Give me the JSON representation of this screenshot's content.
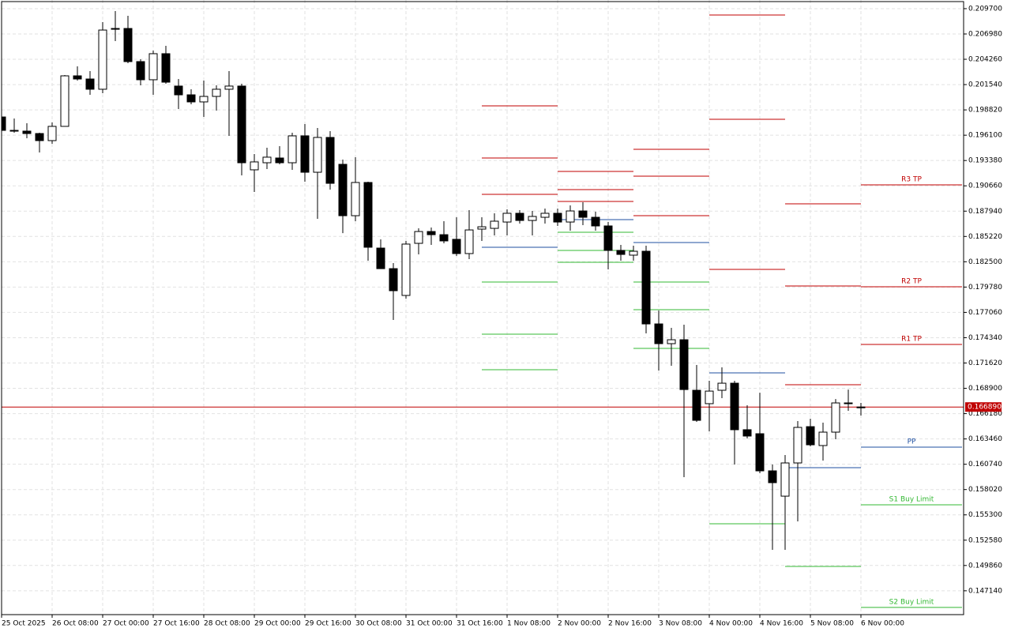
{
  "chart_data": {
    "type": "candlestick",
    "grid": true,
    "bull_color": "#ffffff",
    "bear_color": "#000000",
    "outline_color": "#000000",
    "ylim": [
      0.14458,
      0.21063
    ],
    "yticks": [
      {
        "value": 0.2097,
        "label": "0.209700"
      },
      {
        "value": 0.20698,
        "label": "0.206980"
      },
      {
        "value": 0.20426,
        "label": "0.204260"
      },
      {
        "value": 0.20154,
        "label": "0.201540"
      },
      {
        "value": 0.19882,
        "label": "0.198820"
      },
      {
        "value": 0.1961,
        "label": "0.196100"
      },
      {
        "value": 0.19338,
        "label": "0.193380"
      },
      {
        "value": 0.19066,
        "label": "0.190660"
      },
      {
        "value": 0.18794,
        "label": "0.187940"
      },
      {
        "value": 0.18522,
        "label": "0.185220"
      },
      {
        "value": 0.1825,
        "label": "0.182500"
      },
      {
        "value": 0.17978,
        "label": "0.179780"
      },
      {
        "value": 0.17706,
        "label": "0.177060"
      },
      {
        "value": 0.17434,
        "label": "0.174340"
      },
      {
        "value": 0.17162,
        "label": "0.171620"
      },
      {
        "value": 0.1689,
        "label": "0.168900"
      },
      {
        "value": 0.16618,
        "label": "0.166180"
      },
      {
        "value": 0.16346,
        "label": "0.163460"
      },
      {
        "value": 0.16074,
        "label": "0.160740"
      },
      {
        "value": 0.15802,
        "label": "0.158020"
      },
      {
        "value": 0.1553,
        "label": "0.155300"
      },
      {
        "value": 0.15258,
        "label": "0.152580"
      },
      {
        "value": 0.14986,
        "label": "0.149860"
      },
      {
        "value": 0.14714,
        "label": "0.147140"
      }
    ],
    "time_labels": [
      "25 Oct 2025",
      "26 Oct 08:00",
      "27 Oct 00:00",
      "27 Oct 16:00",
      "28 Oct 08:00",
      "29 Oct 00:00",
      "29 Oct 16:00",
      "30 Oct 08:00",
      "31 Oct 00:00",
      "31 Oct 16:00",
      "1 Nov 08:00",
      "2 Nov 00:00",
      "2 Nov 16:00",
      "3 Nov 08:00",
      "4 Nov 00:00",
      "4 Nov 16:00",
      "5 Nov 08:00",
      "6 Nov 00:00"
    ],
    "open": [
      0.19806,
      0.19662,
      0.19654,
      0.19628,
      0.19552,
      0.19705,
      0.20248,
      0.20214,
      0.20104,
      0.20757,
      0.20757,
      0.20401,
      0.20206,
      0.20486,
      0.20138,
      0.20044,
      0.19968,
      0.20027,
      0.20104,
      0.20138,
      0.19238,
      0.19314,
      0.19365,
      0.19314,
      0.19603,
      0.19212,
      0.19586,
      0.19297,
      0.18745,
      0.19102,
      0.18397,
      0.18176,
      0.17888,
      0.18448,
      0.18575,
      0.18541,
      0.18491,
      0.18338,
      0.18601,
      0.18609,
      0.18677,
      0.18771,
      0.18694,
      0.18728,
      0.18771,
      0.18677,
      0.18796,
      0.18728,
      0.18635,
      0.18372,
      0.18321,
      0.18363,
      0.17582,
      0.1737,
      0.17412,
      0.16869,
      0.16725,
      0.16869,
      0.16945,
      0.16445,
      0.16402,
      0.16003,
      0.15731,
      0.16088,
      0.16478,
      0.16275,
      0.16419,
      0.16733,
      0.16682
    ],
    "high": [
      0.19806,
      0.1979,
      0.19739,
      0.19637,
      0.19747,
      0.20256,
      0.2035,
      0.20299,
      0.20825,
      0.20944,
      0.20893,
      0.20426,
      0.2052,
      0.20571,
      0.20214,
      0.20104,
      0.20197,
      0.20146,
      0.20299,
      0.20163,
      0.19408,
      0.19475,
      0.19492,
      0.19637,
      0.1973,
      0.19688,
      0.19654,
      0.19348,
      0.19374,
      0.1911,
      0.18491,
      0.18236,
      0.18474,
      0.18609,
      0.18618,
      0.18686,
      0.18728,
      0.18805,
      0.18728,
      0.18771,
      0.18813,
      0.18805,
      0.18796,
      0.18822,
      0.18822,
      0.18856,
      0.1889,
      0.18788,
      0.18677,
      0.18431,
      0.18423,
      0.18423,
      0.17726,
      0.1754,
      0.17574,
      0.17141,
      0.16971,
      0.17115,
      0.16971,
      0.16708,
      0.16843,
      0.16071,
      0.16173,
      0.16538,
      0.16563,
      0.16521,
      0.16775,
      0.16877,
      0.16733
    ],
    "low": [
      0.19637,
      0.19637,
      0.19577,
      0.19424,
      0.19518,
      0.19705,
      0.20197,
      0.20044,
      0.20061,
      0.20622,
      0.20384,
      0.20146,
      0.20044,
      0.20163,
      0.19891,
      0.19942,
      0.19806,
      0.19874,
      0.19603,
      0.19178,
      0.19,
      0.19246,
      0.19297,
      0.19238,
      0.1911,
      0.18711,
      0.19025,
      0.18558,
      0.18686,
      0.18261,
      0.18176,
      0.17625,
      0.17854,
      0.18329,
      0.18431,
      0.18448,
      0.18312,
      0.18278,
      0.18474,
      0.18533,
      0.18533,
      0.1866,
      0.18533,
      0.1866,
      0.18635,
      0.18584,
      0.18643,
      0.18584,
      0.18168,
      0.18261,
      0.18261,
      0.1748,
      0.17081,
      0.17132,
      0.15935,
      0.16529,
      0.16428,
      0.16784,
      0.16071,
      0.16351,
      0.15978,
      0.15154,
      0.15154,
      0.1546,
      0.16266,
      0.16114,
      0.16343,
      0.16648,
      0.16597
    ],
    "close": [
      0.19662,
      0.19654,
      0.19628,
      0.19552,
      0.19705,
      0.20248,
      0.20214,
      0.20104,
      0.2074,
      0.20749,
      0.20401,
      0.20206,
      0.20486,
      0.2018,
      0.20044,
      0.19968,
      0.20027,
      0.20104,
      0.20138,
      0.19314,
      0.19323,
      0.19374,
      0.19314,
      0.19603,
      0.19212,
      0.19586,
      0.19093,
      0.18745,
      0.19102,
      0.18406,
      0.18176,
      0.17939,
      0.1844,
      0.18575,
      0.18541,
      0.18474,
      0.18338,
      0.18592,
      0.18626,
      0.18686,
      0.18771,
      0.18694,
      0.18737,
      0.18771,
      0.18677,
      0.18796,
      0.18728,
      0.18635,
      0.18372,
      0.18329,
      0.18363,
      0.17582,
      0.1737,
      0.17412,
      0.16877,
      0.16546,
      0.1686,
      0.16945,
      0.16445,
      0.16377,
      0.16003,
      0.15876,
      0.16088,
      0.1647,
      0.16283,
      0.16419,
      0.16733,
      0.16725,
      0.16689
    ],
    "current_price": {
      "value": 0.16689,
      "label": "0.166890"
    },
    "current_color": "#c00000",
    "resistance_color": "#c00000",
    "pivot_color": "#1f4fa0",
    "support_color": "#33b833",
    "pivots": [
      {
        "r": [
          0.18975,
          0.19365,
          0.19925
        ],
        "pp": 0.18406,
        "s": [
          0.18032,
          0.17472,
          0.1709
        ]
      },
      {
        "r": [
          0.18898,
          0.19025,
          0.19221
        ],
        "pp": 0.18703,
        "s": [
          0.18567,
          0.18372,
          0.18244
        ]
      },
      {
        "r": [
          0.18745,
          0.1917,
          0.19458
        ],
        "pp": 0.18457,
        "s": [
          0.18032,
          0.17735,
          0.17319
        ]
      },
      {
        "r": [
          0.18168,
          0.19781,
          0.20902
        ],
        "pp": 0.17056,
        "s": [
          0.15434
        ]
      },
      {
        "r": [
          0.16928,
          0.1799,
          0.18873
        ],
        "pp": 0.16037,
        "s": [
          0.14976
        ]
      },
      {
        "r": [
          0.17361,
          0.17981,
          0.19076
        ],
        "pp": 0.16258,
        "s": [
          0.15638,
          0.14535
        ],
        "r_labels": [
          "R1 TP",
          "R2 TP",
          "R3 TP"
        ],
        "pp_label": "PP",
        "s_labels": [
          "S1 Buy Limit",
          "S2 Buy Limit"
        ]
      }
    ]
  }
}
